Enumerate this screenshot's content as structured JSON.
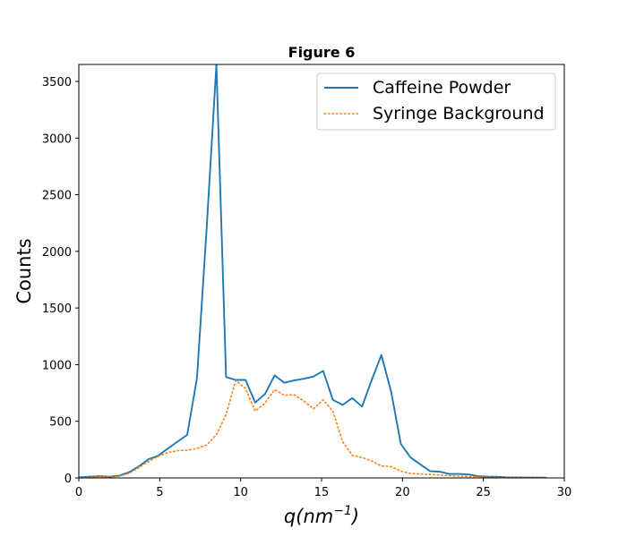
{
  "chart_data": {
    "type": "line",
    "title": "Figure 6",
    "xlabel_base": "q(nm",
    "xlabel_sup": "−1",
    "xlabel_close": ")",
    "ylabel": "Counts",
    "xlim": [
      0,
      30
    ],
    "ylim": [
      0,
      3650
    ],
    "xticks": [
      0,
      5,
      10,
      15,
      20,
      25,
      30
    ],
    "yticks": [
      0,
      500,
      1000,
      1500,
      2000,
      2500,
      3000,
      3500
    ],
    "grid": false,
    "legend_position": "top-right",
    "series": [
      {
        "name": "Caffeine Powder",
        "color": "#1f77b4",
        "style": "solid",
        "x": [
          0,
          0.6,
          1.3,
          1.9,
          2.5,
          3.1,
          3.7,
          4.3,
          4.9,
          5.5,
          6.1,
          6.7,
          7.3,
          7.9,
          8.5,
          9.1,
          9.7,
          10.3,
          10.9,
          11.5,
          12.1,
          12.7,
          13.3,
          13.9,
          14.5,
          15.1,
          15.7,
          16.3,
          16.9,
          17.5,
          18.1,
          18.7,
          19.3,
          19.9,
          20.5,
          21.1,
          21.7,
          22.3,
          22.9,
          23.5,
          24.1,
          24.7,
          25.3,
          25.9,
          26.5,
          27.1,
          27.7,
          28.3,
          28.9
        ],
        "y": [
          5,
          10,
          15,
          10,
          20,
          50,
          100,
          165,
          195,
          260,
          320,
          380,
          880,
          2200,
          3650,
          890,
          865,
          865,
          665,
          740,
          905,
          840,
          860,
          875,
          895,
          945,
          690,
          645,
          705,
          630,
          865,
          1085,
          760,
          300,
          180,
          120,
          60,
          55,
          35,
          35,
          30,
          15,
          10,
          10,
          5,
          5,
          3,
          3,
          2
        ]
      },
      {
        "name": "Syringe Background",
        "color": "#ff7f0e",
        "style": "dotted",
        "x": [
          0,
          0.6,
          1.3,
          1.9,
          2.5,
          3.1,
          3.7,
          4.3,
          4.9,
          5.5,
          6.1,
          6.7,
          7.3,
          7.9,
          8.5,
          9.1,
          9.7,
          10.3,
          10.9,
          11.5,
          12.1,
          12.7,
          13.3,
          13.9,
          14.5,
          15.1,
          15.7,
          16.3,
          16.9,
          17.5,
          18.1,
          18.7,
          19.3,
          19.9,
          20.5,
          21.1,
          21.7,
          22.3,
          22.9,
          23.5,
          24.1,
          24.7,
          25.3,
          25.9,
          26.5,
          27.1,
          27.7,
          28.3,
          28.9
        ],
        "y": [
          0,
          5,
          10,
          8,
          15,
          40,
          90,
          145,
          190,
          225,
          240,
          245,
          260,
          290,
          380,
          560,
          860,
          790,
          590,
          660,
          780,
          730,
          735,
          680,
          610,
          690,
          590,
          320,
          200,
          180,
          150,
          105,
          100,
          60,
          40,
          35,
          30,
          25,
          20,
          15,
          12,
          10,
          5,
          5,
          3,
          3,
          2,
          2,
          1
        ]
      }
    ]
  }
}
